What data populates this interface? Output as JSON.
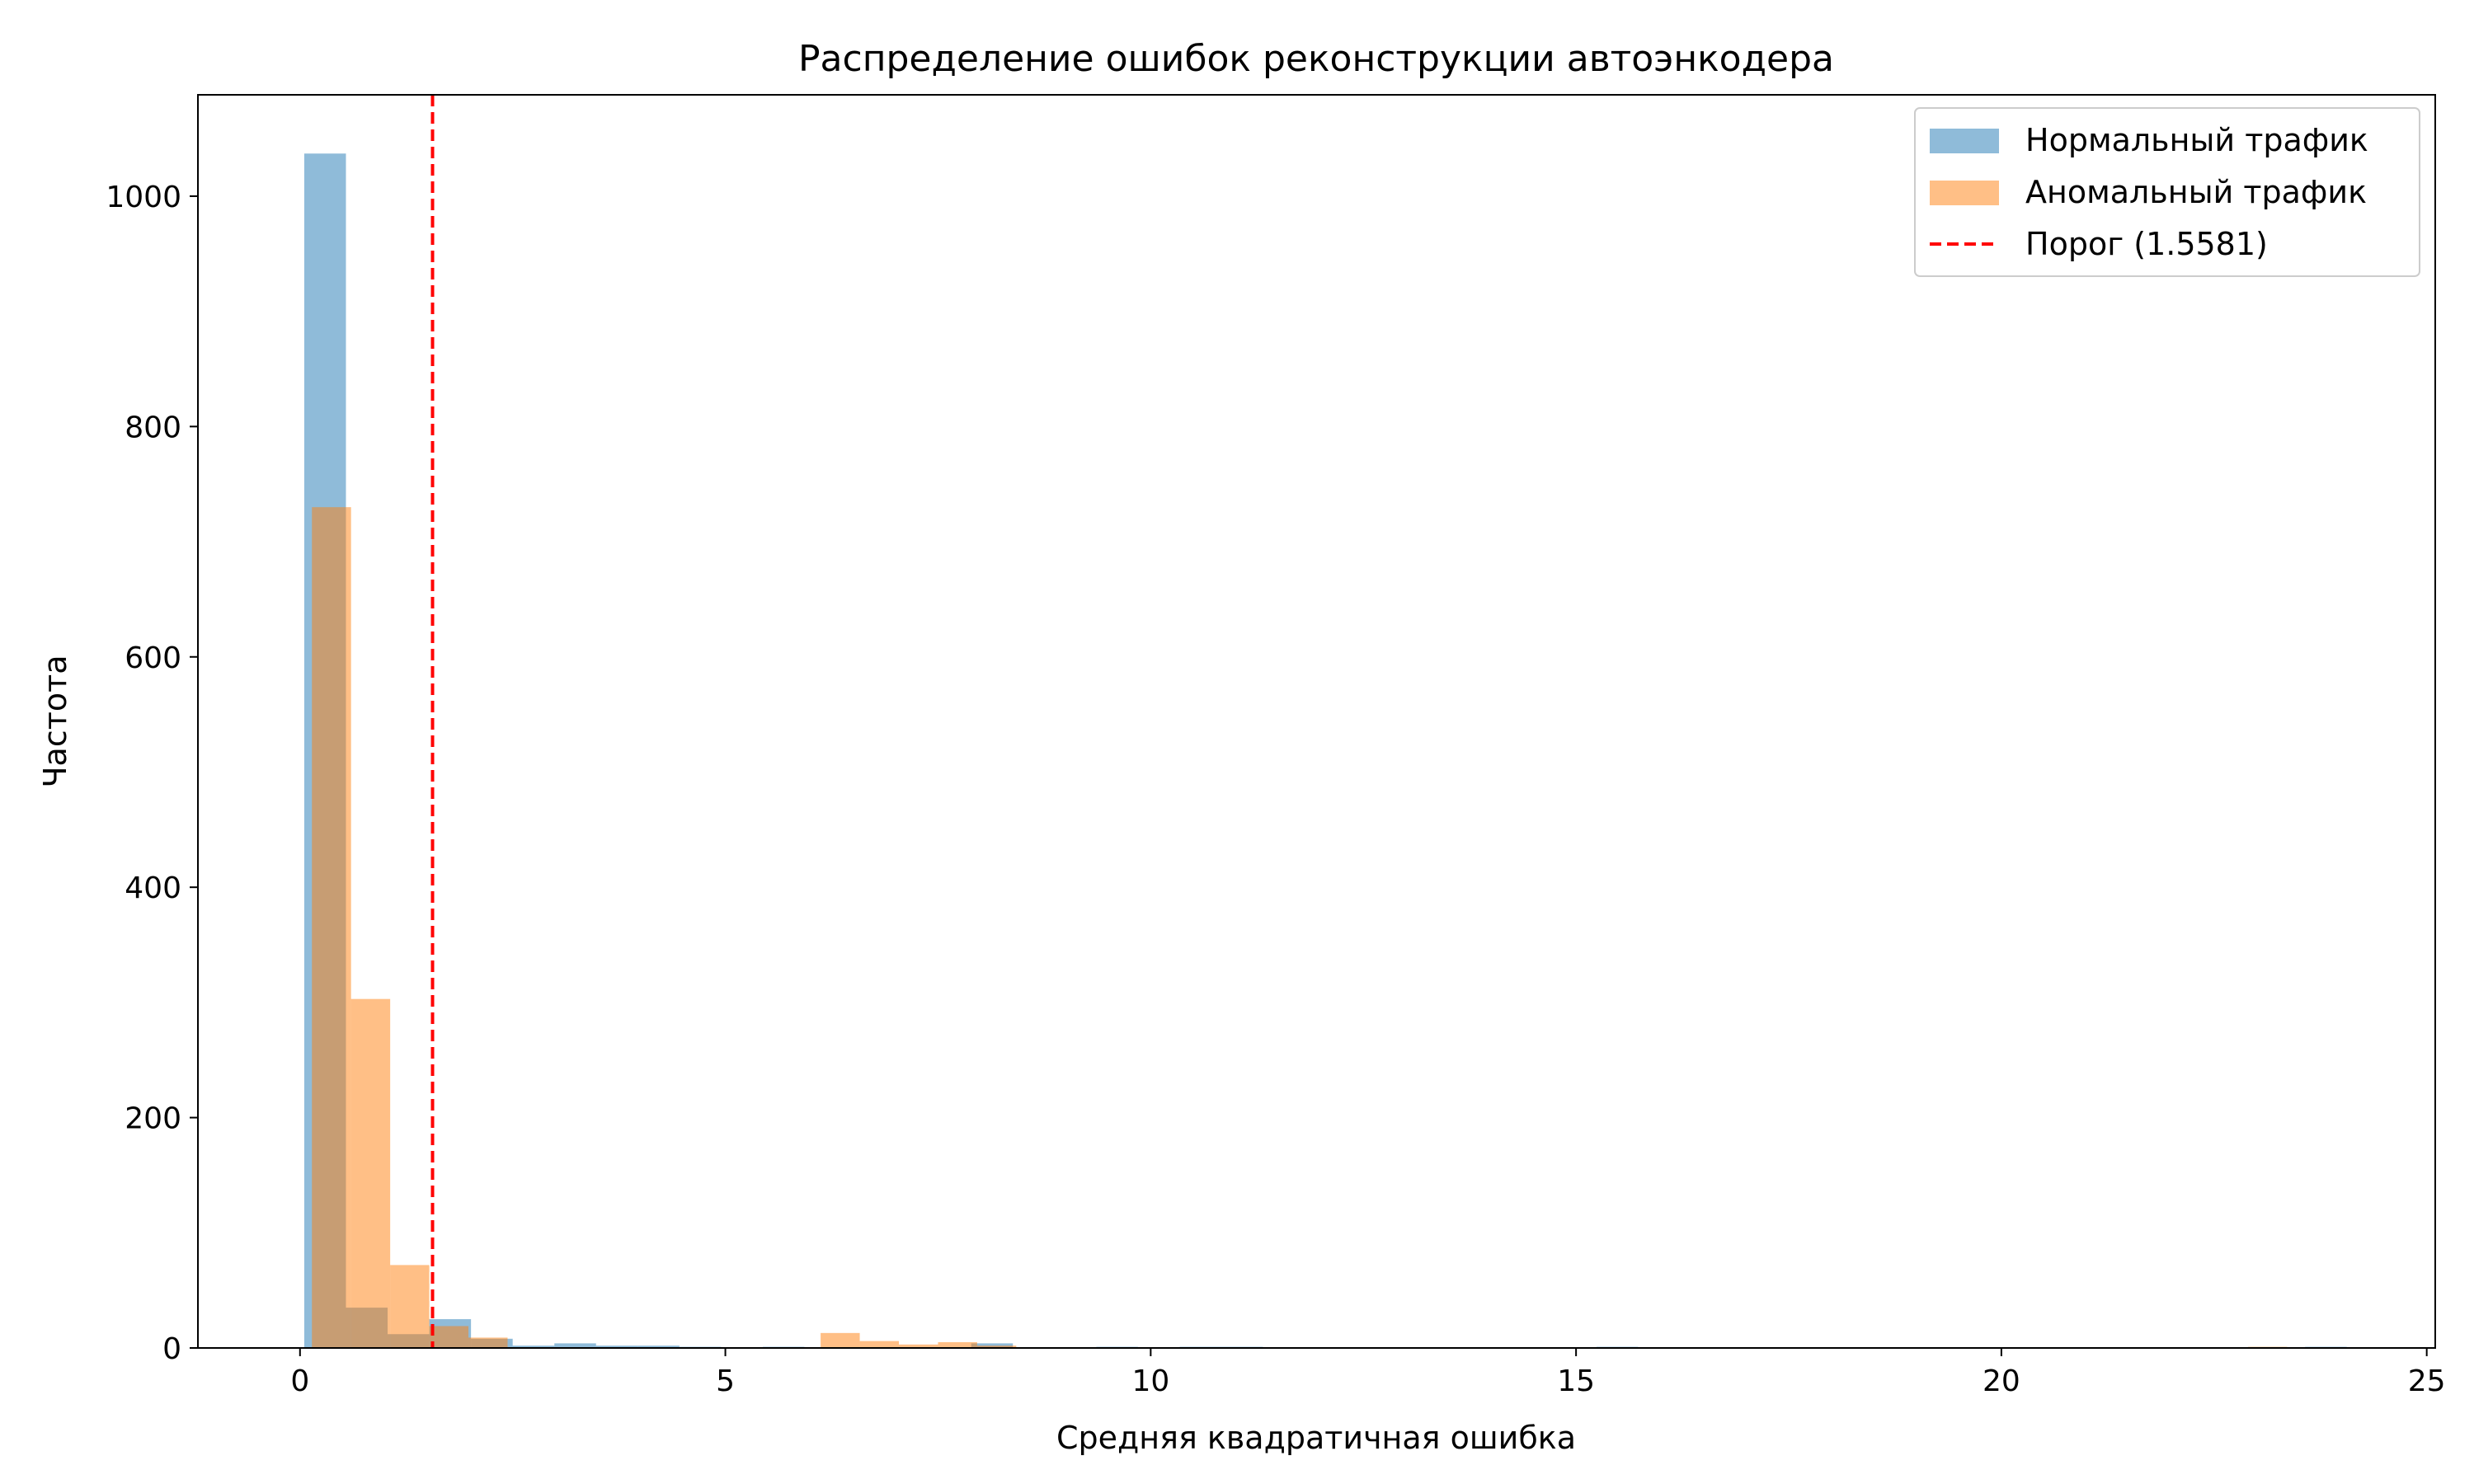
{
  "chart_data": {
    "type": "histogram",
    "title": "Распределение ошибок реконструкции автоэнкодера",
    "xlabel": "Средняя квадратичная ошибка",
    "ylabel": "Частота",
    "xlim": [
      -1.2,
      25.1
    ],
    "ylim": [
      0,
      1088
    ],
    "xticks": [
      0,
      5,
      10,
      15,
      20,
      25
    ],
    "xtick_labels": [
      "0",
      "5",
      "10",
      "15",
      "20",
      "25"
    ],
    "yticks": [
      0,
      200,
      400,
      600,
      800,
      1000
    ],
    "ytick_labels": [
      "0",
      "200",
      "400",
      "600",
      "800",
      "1000"
    ],
    "grid": false,
    "legend_position": "top-right",
    "series": [
      {
        "name": "Нормальный трафик",
        "color": "#1f77b4",
        "opacity": 0.5,
        "bin_width": 0.49,
        "bins": [
          {
            "start": 0.05,
            "value": 1037
          },
          {
            "start": 0.54,
            "value": 35
          },
          {
            "start": 1.03,
            "value": 12
          },
          {
            "start": 1.52,
            "value": 25
          },
          {
            "start": 2.01,
            "value": 8
          },
          {
            "start": 2.5,
            "value": 2
          },
          {
            "start": 2.99,
            "value": 4
          },
          {
            "start": 3.48,
            "value": 2
          },
          {
            "start": 3.97,
            "value": 2
          },
          {
            "start": 4.46,
            "value": 1
          },
          {
            "start": 5.44,
            "value": 1
          },
          {
            "start": 7.89,
            "value": 4
          },
          {
            "start": 9.36,
            "value": 1
          },
          {
            "start": 10.34,
            "value": 1
          },
          {
            "start": 10.83,
            "value": 1
          },
          {
            "start": 15.24,
            "value": 1
          },
          {
            "start": 23.57,
            "value": 1
          }
        ]
      },
      {
        "name": "Аномальный трафик",
        "color": "#ff7f0e",
        "opacity": 0.5,
        "bin_width": 0.46,
        "bins": [
          {
            "start": 0.14,
            "value": 730
          },
          {
            "start": 0.6,
            "value": 303
          },
          {
            "start": 1.06,
            "value": 72
          },
          {
            "start": 1.52,
            "value": 19
          },
          {
            "start": 1.98,
            "value": 9
          },
          {
            "start": 6.12,
            "value": 13
          },
          {
            "start": 6.58,
            "value": 6
          },
          {
            "start": 7.04,
            "value": 3
          },
          {
            "start": 7.5,
            "value": 5
          },
          {
            "start": 7.96,
            "value": 2
          },
          {
            "start": 22.9,
            "value": 1
          }
        ]
      }
    ],
    "threshold": {
      "name": "Порог (1.5581)",
      "value": 1.5581,
      "color": "#ff0000",
      "style": "dashed"
    }
  }
}
